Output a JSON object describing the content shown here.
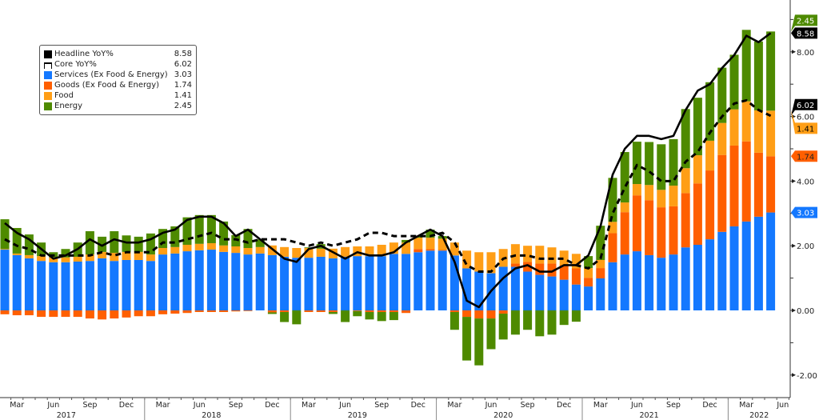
{
  "chart_data": {
    "type": "bar",
    "stacked": true,
    "title": "",
    "xlabel": "",
    "ylabel": "",
    "ylim": [
      -2.6,
      9.6
    ],
    "y_ticks": [
      "8.00",
      "6.00",
      "4.00",
      "2.00",
      "0.00",
      "-2.00"
    ],
    "y_tick_values": [
      8,
      6,
      4,
      2,
      0,
      -2
    ],
    "y_axis_side": "right",
    "grid": false,
    "legend_position": "top-left",
    "months_start": "2017-02",
    "month_count": 64,
    "x_month_labels": [
      {
        "label": "Mar",
        "index": 1
      },
      {
        "label": "Jun",
        "index": 4
      },
      {
        "label": "Sep",
        "index": 7
      },
      {
        "label": "Dec",
        "index": 10
      },
      {
        "label": "Mar",
        "index": 13
      },
      {
        "label": "Jun",
        "index": 16
      },
      {
        "label": "Sep",
        "index": 19
      },
      {
        "label": "Dec",
        "index": 22
      },
      {
        "label": "Mar",
        "index": 25
      },
      {
        "label": "Jun",
        "index": 28
      },
      {
        "label": "Sep",
        "index": 31
      },
      {
        "label": "Dec",
        "index": 34
      },
      {
        "label": "Mar",
        "index": 37
      },
      {
        "label": "Jun",
        "index": 40
      },
      {
        "label": "Sep",
        "index": 43
      },
      {
        "label": "Dec",
        "index": 46
      },
      {
        "label": "Mar",
        "index": 49
      },
      {
        "label": "Jun",
        "index": 52
      },
      {
        "label": "Sep",
        "index": 55
      },
      {
        "label": "Dec",
        "index": 58
      },
      {
        "label": "Mar",
        "index": 61
      },
      {
        "label": "Jun",
        "index": 64
      }
    ],
    "x_year_labels": [
      {
        "label": "2017",
        "start": -1,
        "end": 10
      },
      {
        "label": "2018",
        "start": 11,
        "end": 22
      },
      {
        "label": "2019",
        "start": 23,
        "end": 34
      },
      {
        "label": "2020",
        "start": 35,
        "end": 46
      },
      {
        "label": "2021",
        "start": 47,
        "end": 58
      },
      {
        "label": "2022",
        "start": 59,
        "end": 65
      }
    ],
    "series": [
      {
        "name": "Services (Ex Food & Energy)",
        "kind": "bar",
        "color": "#1478ff",
        "last": "3.03",
        "values": [
          1.88,
          1.71,
          1.61,
          1.53,
          1.49,
          1.49,
          1.51,
          1.53,
          1.61,
          1.53,
          1.56,
          1.56,
          1.53,
          1.73,
          1.76,
          1.83,
          1.86,
          1.88,
          1.81,
          1.78,
          1.73,
          1.76,
          1.71,
          1.66,
          1.63,
          1.63,
          1.66,
          1.61,
          1.66,
          1.68,
          1.68,
          1.68,
          1.75,
          1.75,
          1.8,
          1.85,
          1.85,
          1.7,
          1.3,
          1.2,
          1.15,
          1.35,
          1.35,
          1.2,
          1.1,
          1.05,
          0.95,
          0.8,
          0.74,
          0.99,
          1.49,
          1.73,
          1.83,
          1.71,
          1.63,
          1.73,
          1.95,
          2.03,
          2.2,
          2.43,
          2.6,
          2.75,
          2.9,
          3.03
        ]
      },
      {
        "name": "Goods (Ex Food & Energy)",
        "kind": "bar",
        "color": "#ff5f00",
        "last": "1.74",
        "values": [
          -0.12,
          -0.15,
          -0.15,
          -0.2,
          -0.2,
          -0.2,
          -0.2,
          -0.25,
          -0.28,
          -0.25,
          -0.22,
          -0.18,
          -0.18,
          -0.12,
          -0.1,
          -0.08,
          -0.05,
          -0.05,
          -0.05,
          -0.03,
          -0.02,
          0,
          -0.06,
          -0.05,
          0,
          -0.05,
          -0.05,
          -0.05,
          0,
          -0.02,
          -0.05,
          -0.05,
          -0.05,
          -0.08,
          0.1,
          0.05,
          0.02,
          -0.05,
          -0.2,
          -0.25,
          -0.25,
          -0.1,
          0.1,
          0.3,
          0.35,
          0.4,
          0.45,
          0.5,
          0.27,
          0.32,
          0.9,
          1.31,
          1.73,
          1.7,
          1.56,
          1.49,
          1.68,
          1.9,
          2.13,
          2.38,
          2.5,
          2.48,
          1.98,
          1.74
        ]
      },
      {
        "name": "Food",
        "kind": "bar",
        "color": "#ff9e16",
        "last": "1.41",
        "values": [
          0.02,
          0.05,
          0.1,
          0.15,
          0.15,
          0.15,
          0.15,
          0.2,
          0.2,
          0.25,
          0.25,
          0.25,
          0.2,
          0.2,
          0.2,
          0.2,
          0.2,
          0.2,
          0.2,
          0.2,
          0.2,
          0.2,
          0.3,
          0.3,
          0.3,
          0.3,
          0.25,
          0.3,
          0.3,
          0.3,
          0.3,
          0.35,
          0.35,
          0.35,
          0.35,
          0.35,
          0.35,
          0.4,
          0.55,
          0.6,
          0.65,
          0.55,
          0.6,
          0.5,
          0.55,
          0.5,
          0.45,
          0.45,
          0.3,
          0.25,
          0.35,
          0.3,
          0.35,
          0.47,
          0.54,
          0.64,
          0.77,
          0.87,
          0.92,
          0.99,
          1.12,
          1.24,
          1.31,
          1.41
        ]
      },
      {
        "name": "Energy",
        "kind": "bar",
        "color": "#4e8a00",
        "last": "2.45",
        "values": [
          0.92,
          0.79,
          0.64,
          0.42,
          0.16,
          0.26,
          0.44,
          0.72,
          0.47,
          0.67,
          0.51,
          0.47,
          0.65,
          0.59,
          0.64,
          0.85,
          0.89,
          0.87,
          0.74,
          0.35,
          0.59,
          0.24,
          -0.05,
          -0.31,
          -0.43,
          0.02,
          0.14,
          -0.06,
          -0.36,
          -0.16,
          -0.23,
          -0.28,
          -0.25,
          0.08,
          0.05,
          0.25,
          0.08,
          -0.55,
          -1.35,
          -1.45,
          -0.95,
          -0.8,
          -0.75,
          -0.6,
          -0.8,
          -0.75,
          -0.45,
          -0.35,
          0.37,
          1.06,
          1.36,
          1.56,
          1.31,
          1.33,
          1.41,
          1.44,
          1.83,
          1.78,
          1.81,
          1.71,
          1.69,
          2.21,
          2.13,
          2.45
        ]
      },
      {
        "name": "Headline YoY%",
        "kind": "line",
        "color": "#000000",
        "last": "8.58",
        "values": [
          2.7,
          2.4,
          2.2,
          1.9,
          1.6,
          1.7,
          1.9,
          2.2,
          2.0,
          2.2,
          2.1,
          2.1,
          2.2,
          2.4,
          2.5,
          2.8,
          2.9,
          2.9,
          2.7,
          2.3,
          2.5,
          2.2,
          1.9,
          1.6,
          1.5,
          1.9,
          2.0,
          1.8,
          1.6,
          1.8,
          1.7,
          1.7,
          1.8,
          2.1,
          2.3,
          2.5,
          2.3,
          1.5,
          0.3,
          0.1,
          0.6,
          1.0,
          1.3,
          1.4,
          1.2,
          1.2,
          1.4,
          1.4,
          1.7,
          2.6,
          4.2,
          5.0,
          5.4,
          5.4,
          5.3,
          5.4,
          6.2,
          6.8,
          7.0,
          7.5,
          7.9,
          8.5,
          8.3,
          8.58
        ]
      },
      {
        "name": "Core YoY%",
        "kind": "line",
        "dashed": true,
        "color": "#000000",
        "last": "6.02",
        "values": [
          2.2,
          2.0,
          1.9,
          1.7,
          1.7,
          1.7,
          1.7,
          1.7,
          1.8,
          1.7,
          1.8,
          1.8,
          1.8,
          2.1,
          2.1,
          2.2,
          2.3,
          2.4,
          2.2,
          2.2,
          2.1,
          2.2,
          2.2,
          2.2,
          2.1,
          2.0,
          2.1,
          2.0,
          2.1,
          2.2,
          2.4,
          2.4,
          2.3,
          2.3,
          2.3,
          2.3,
          2.4,
          2.1,
          1.4,
          1.2,
          1.2,
          1.6,
          1.7,
          1.7,
          1.6,
          1.6,
          1.6,
          1.4,
          1.3,
          1.6,
          3.0,
          3.8,
          4.5,
          4.3,
          4.0,
          4.0,
          4.6,
          4.9,
          5.5,
          6.0,
          6.4,
          6.5,
          6.2,
          6.02
        ]
      }
    ]
  },
  "legend": {
    "items": [
      {
        "name": "Headline YoY%",
        "value": "8.58",
        "color": "#000000"
      },
      {
        "name": "Core YoY%",
        "value": "6.02",
        "color": "#000000"
      },
      {
        "name": "Services (Ex Food & Energy)",
        "value": "3.03",
        "color": "#1478ff"
      },
      {
        "name": "Goods (Ex Food & Energy)",
        "value": "1.74",
        "color": "#ff5f00"
      },
      {
        "name": "Food",
        "value": "1.41",
        "color": "#ff9e16"
      },
      {
        "name": "Energy",
        "value": "2.45",
        "color": "#4e8a00"
      }
    ]
  }
}
